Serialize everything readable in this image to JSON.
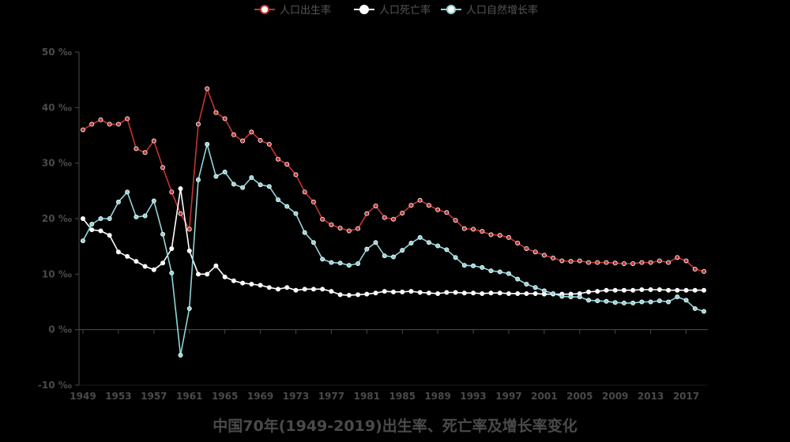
{
  "chart_data": {
    "type": "line",
    "title": "中国70年(1949-2019)出生率、死亡率及增长率变化",
    "xlabel": "",
    "ylabel": "",
    "unit": "‰",
    "ylim": [
      -10,
      50
    ],
    "yticks": [
      -10,
      0,
      10,
      20,
      30,
      40,
      50
    ],
    "ytick_labels": [
      "-10 ‰",
      "0 ‰",
      "10 ‰",
      "20 ‰",
      "30 ‰",
      "40 ‰",
      "50 ‰"
    ],
    "xlim": [
      1949,
      2019
    ],
    "xticks": [
      1949,
      1953,
      1957,
      1961,
      1965,
      1969,
      1973,
      1977,
      1981,
      1985,
      1989,
      1993,
      1997,
      2001,
      2005,
      2009,
      2013,
      2017
    ],
    "legend_position": "top-center",
    "grid": false,
    "x": [
      1949,
      1950,
      1951,
      1952,
      1953,
      1954,
      1955,
      1956,
      1957,
      1958,
      1959,
      1960,
      1961,
      1962,
      1963,
      1964,
      1965,
      1966,
      1967,
      1968,
      1969,
      1970,
      1971,
      1972,
      1973,
      1974,
      1975,
      1976,
      1977,
      1978,
      1979,
      1980,
      1981,
      1982,
      1983,
      1984,
      1985,
      1986,
      1987,
      1988,
      1989,
      1990,
      1991,
      1992,
      1993,
      1994,
      1995,
      1996,
      1997,
      1998,
      1999,
      2000,
      2001,
      2002,
      2003,
      2004,
      2005,
      2006,
      2007,
      2008,
      2009,
      2010,
      2011,
      2012,
      2013,
      2014,
      2015,
      2016,
      2017,
      2018,
      2019
    ],
    "series": [
      {
        "name": "人口出生率",
        "color": "#c23531",
        "values": [
          36.0,
          37.0,
          37.8,
          37.0,
          37.0,
          38.0,
          32.6,
          31.9,
          34.0,
          29.2,
          24.8,
          20.9,
          18.1,
          37.0,
          43.4,
          39.1,
          38.0,
          35.1,
          34.0,
          35.6,
          34.1,
          33.4,
          30.7,
          29.8,
          27.9,
          24.8,
          23.0,
          19.9,
          18.9,
          18.3,
          17.8,
          18.2,
          20.9,
          22.3,
          20.2,
          19.9,
          21.0,
          22.4,
          23.3,
          22.4,
          21.6,
          21.1,
          19.7,
          18.2,
          18.1,
          17.7,
          17.1,
          17.0,
          16.6,
          15.6,
          14.6,
          14.0,
          13.4,
          12.9,
          12.4,
          12.3,
          12.4,
          12.1,
          12.1,
          12.1,
          12.0,
          11.9,
          11.9,
          12.1,
          12.1,
          12.4,
          12.1,
          13.0,
          12.4,
          10.9,
          10.5
        ]
      },
      {
        "name": "人口死亡率",
        "color": "#ffffff",
        "values": [
          20.0,
          18.0,
          17.8,
          17.0,
          14.0,
          13.2,
          12.3,
          11.4,
          10.8,
          12.0,
          14.6,
          25.4,
          14.2,
          10.0,
          10.0,
          11.5,
          9.5,
          8.8,
          8.4,
          8.2,
          8.0,
          7.6,
          7.3,
          7.6,
          7.1,
          7.3,
          7.3,
          7.3,
          6.9,
          6.3,
          6.2,
          6.3,
          6.4,
          6.6,
          6.9,
          6.8,
          6.8,
          6.9,
          6.7,
          6.6,
          6.5,
          6.7,
          6.7,
          6.6,
          6.6,
          6.5,
          6.6,
          6.6,
          6.5,
          6.5,
          6.5,
          6.5,
          6.4,
          6.4,
          6.4,
          6.4,
          6.5,
          6.8,
          6.9,
          7.1,
          7.1,
          7.1,
          7.1,
          7.2,
          7.2,
          7.2,
          7.1,
          7.1,
          7.1,
          7.1,
          7.1
        ]
      },
      {
        "name": "人口自然增长率",
        "color": "#91d5d9",
        "values": [
          16.0,
          19.0,
          20.0,
          20.0,
          23.0,
          24.8,
          20.3,
          20.5,
          23.2,
          17.2,
          10.2,
          -4.6,
          3.8,
          27.0,
          33.4,
          27.6,
          28.4,
          26.2,
          25.6,
          27.4,
          26.1,
          25.8,
          23.4,
          22.2,
          20.9,
          17.5,
          15.7,
          12.7,
          12.1,
          12.0,
          11.6,
          11.9,
          14.5,
          15.7,
          13.3,
          13.1,
          14.3,
          15.6,
          16.6,
          15.7,
          15.1,
          14.4,
          13.0,
          11.6,
          11.5,
          11.2,
          10.6,
          10.4,
          10.1,
          9.1,
          8.2,
          7.6,
          7.0,
          6.5,
          6.0,
          5.9,
          5.9,
          5.3,
          5.2,
          5.1,
          4.9,
          4.8,
          4.8,
          5.0,
          5.0,
          5.2,
          5.0,
          5.9,
          5.3,
          3.8,
          3.3
        ]
      }
    ]
  }
}
